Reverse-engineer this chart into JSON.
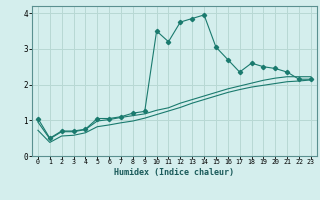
{
  "title": "",
  "xlabel": "Humidex (Indice chaleur)",
  "bg_color": "#d4eeed",
  "line_color": "#1a7a6e",
  "grid_color": "#b8d8d4",
  "xlim": [
    -0.5,
    23.5
  ],
  "ylim": [
    0,
    4.2
  ],
  "xticks": [
    0,
    1,
    2,
    3,
    4,
    5,
    6,
    7,
    8,
    9,
    10,
    11,
    12,
    13,
    14,
    15,
    16,
    17,
    18,
    19,
    20,
    21,
    22,
    23
  ],
  "yticks": [
    0,
    1,
    2,
    3,
    4
  ],
  "series1_x": [
    0,
    1,
    2,
    3,
    4,
    5,
    6,
    7,
    8,
    9,
    10,
    11,
    12,
    13,
    14,
    15,
    16,
    17,
    18,
    19,
    20,
    21,
    22,
    23
  ],
  "series1_y": [
    1.05,
    0.5,
    0.7,
    0.7,
    0.75,
    1.05,
    1.05,
    1.1,
    1.2,
    1.25,
    3.5,
    3.2,
    3.75,
    3.85,
    3.95,
    3.05,
    2.7,
    2.35,
    2.6,
    2.5,
    2.45,
    2.35,
    2.15,
    2.15
  ],
  "series2_x": [
    0,
    1,
    2,
    3,
    4,
    5,
    6,
    7,
    8,
    9,
    10,
    11,
    12,
    13,
    14,
    15,
    16,
    17,
    18,
    19,
    20,
    21,
    22,
    23
  ],
  "series2_y": [
    0.95,
    0.48,
    0.68,
    0.68,
    0.74,
    0.98,
    1.02,
    1.08,
    1.13,
    1.18,
    1.28,
    1.35,
    1.48,
    1.58,
    1.68,
    1.78,
    1.88,
    1.96,
    2.04,
    2.12,
    2.18,
    2.22,
    2.22,
    2.22
  ],
  "series3_x": [
    0,
    1,
    2,
    3,
    4,
    5,
    6,
    7,
    8,
    9,
    10,
    11,
    12,
    13,
    14,
    15,
    16,
    17,
    18,
    19,
    20,
    21,
    22,
    23
  ],
  "series3_y": [
    0.72,
    0.38,
    0.56,
    0.58,
    0.65,
    0.82,
    0.87,
    0.93,
    0.98,
    1.06,
    1.16,
    1.26,
    1.36,
    1.48,
    1.58,
    1.68,
    1.78,
    1.86,
    1.93,
    1.98,
    2.03,
    2.08,
    2.1,
    2.13
  ]
}
